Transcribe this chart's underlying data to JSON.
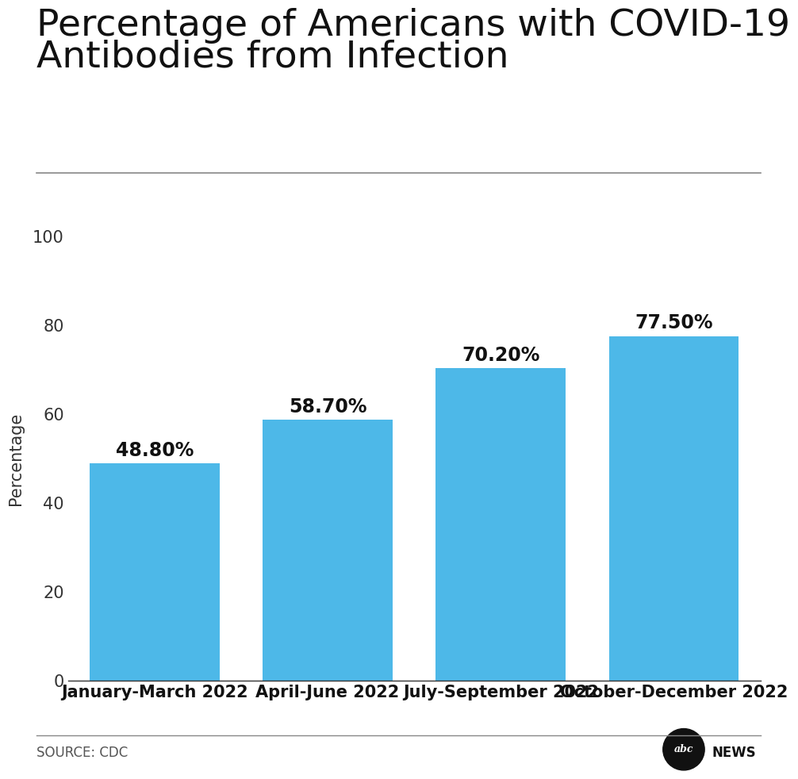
{
  "title_line1": "Percentage of Americans with COVID-19",
  "title_line2": "Antibodies from Infection",
  "categories": [
    "January-March 2022",
    "April-June 2022",
    "July-September 2022",
    "October-December 2022"
  ],
  "values": [
    48.8,
    58.7,
    70.2,
    77.5
  ],
  "labels": [
    "48.80%",
    "58.70%",
    "70.20%",
    "77.50%"
  ],
  "bar_color": "#4db8e8",
  "ylabel": "Percentage",
  "ylim": [
    0,
    100
  ],
  "yticks": [
    0,
    20,
    40,
    60,
    80,
    100
  ],
  "source_text": "SOURCE: CDC",
  "background_color": "#ffffff",
  "title_fontsize": 34,
  "label_fontsize": 17,
  "tick_fontsize": 15,
  "ylabel_fontsize": 15,
  "source_fontsize": 12,
  "bar_width": 0.75
}
